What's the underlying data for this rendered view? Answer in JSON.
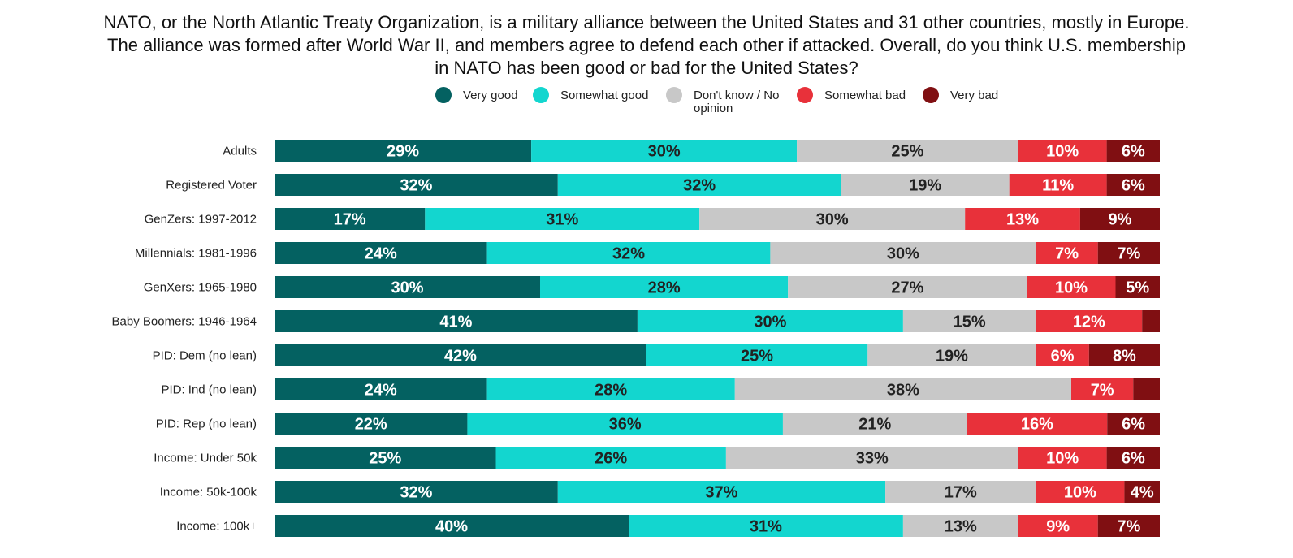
{
  "title_lines": [
    "NATO, or the North Atlantic Treaty Organization, is a military alliance between the United States and 31 other countries, mostly in Europe.",
    "The alliance was formed after World War II, and members agree to defend each other if attacked. Overall, do you think U.S. membership",
    "in NATO has been good or bad for the United States?"
  ],
  "legend": [
    {
      "label": "Very good",
      "color": "#046161"
    },
    {
      "label": "Somewhat good",
      "color": "#13D6CF"
    },
    {
      "label": "Don't know / No opinion",
      "label_lines": [
        "Don't know / No",
        "opinion"
      ],
      "color": "#C8C8C8"
    },
    {
      "label": "Somewhat bad",
      "color": "#E8313A"
    },
    {
      "label": "Very bad",
      "color": "#800F12"
    }
  ],
  "chart_data": {
    "type": "bar",
    "orientation": "horizontal",
    "stacked": true,
    "percent_stacked": true,
    "title": "NATO, or the North Atlantic Treaty Organization, is a military alliance between the United States and 31 other countries, mostly in Europe. The alliance was formed after World War II, and members agree to defend each other if attacked. Overall, do you think U.S. membership in NATO has been good or bad for the United States?",
    "xlabel": "",
    "ylabel": "",
    "grid": false,
    "legend_position": "top",
    "categories": [
      "Adults",
      "Registered Voter",
      "GenZers: 1997-2012",
      "Millennials: 1981-1996",
      "GenXers: 1965-1980",
      "Baby Boomers: 1946-1964",
      "PID: Dem (no lean)",
      "PID: Ind (no lean)",
      "PID: Rep (no lean)",
      "Income: Under 50k",
      "Income: 50k-100k",
      "Income: 100k+"
    ],
    "series": [
      {
        "name": "Very good",
        "color": "#046161",
        "label_color": "#FFFFFF",
        "values": [
          29,
          32,
          17,
          24,
          30,
          41,
          42,
          24,
          22,
          25,
          32,
          40
        ],
        "labels": [
          "29%",
          "32%",
          "17%",
          "24%",
          "30%",
          "41%",
          "42%",
          "24%",
          "22%",
          "25%",
          "32%",
          "40%"
        ]
      },
      {
        "name": "Somewhat good",
        "color": "#13D6CF",
        "label_color": "#222222",
        "values": [
          30,
          32,
          31,
          32,
          28,
          30,
          25,
          28,
          36,
          26,
          37,
          31
        ],
        "labels": [
          "30%",
          "32%",
          "31%",
          "32%",
          "28%",
          "30%",
          "25%",
          "28%",
          "36%",
          "26%",
          "37%",
          "31%"
        ]
      },
      {
        "name": "Don't know / No opinion",
        "color": "#C8C8C8",
        "label_color": "#222222",
        "values": [
          25,
          19,
          30,
          30,
          27,
          15,
          19,
          38,
          21,
          33,
          17,
          13
        ],
        "labels": [
          "25%",
          "19%",
          "30%",
          "30%",
          "27%",
          "15%",
          "19%",
          "38%",
          "21%",
          "33%",
          "17%",
          "13%"
        ]
      },
      {
        "name": "Somewhat bad",
        "color": "#E8313A",
        "label_color": "#FFFFFF",
        "values": [
          10,
          11,
          13,
          7,
          10,
          12,
          6,
          7,
          16,
          10,
          10,
          9
        ],
        "labels": [
          "10%",
          "11%",
          "13%",
          "7%",
          "10%",
          "12%",
          "6%",
          "7%",
          "16%",
          "10%",
          "10%",
          "9%"
        ]
      },
      {
        "name": "Very bad",
        "color": "#800F12",
        "label_color": "#FFFFFF",
        "values": [
          6,
          6,
          9,
          7,
          5,
          2,
          8,
          3,
          6,
          6,
          4,
          7
        ],
        "labels": [
          "6%",
          "6%",
          "9%",
          "7%",
          "5%",
          "",
          "8%",
          "",
          "6%",
          "6%",
          "4%",
          "7%"
        ]
      }
    ]
  }
}
